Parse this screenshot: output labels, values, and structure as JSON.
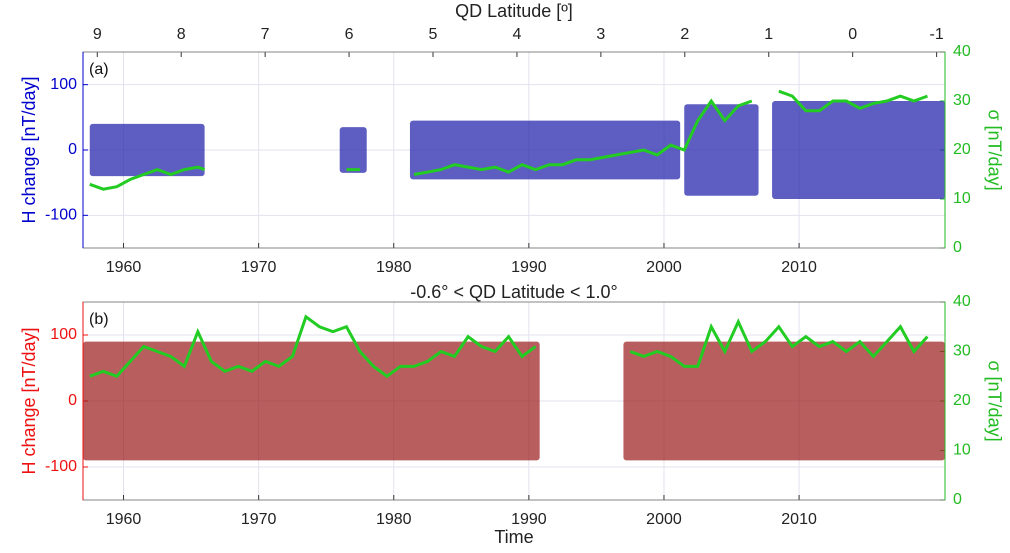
{
  "chart_data": [
    {
      "type": "scatter",
      "panel_label": "(a)",
      "x2label": "QD Latitude [º]",
      "ylabel": "H change [nT/day]",
      "y2label": "σ [nT/day]",
      "xlim": [
        1957,
        2020.8
      ],
      "xticks": [
        1960,
        1970,
        1980,
        1990,
        2000,
        2010
      ],
      "x2lim": [
        9.17,
        -1.1
      ],
      "x2ticks": [
        9,
        8,
        7,
        6,
        5,
        4,
        3,
        2,
        1,
        0,
        -1
      ],
      "ylim": [
        -150,
        150
      ],
      "yticks": [
        -100,
        0,
        100
      ],
      "y2lim": [
        0,
        40
      ],
      "y2ticks": [
        0,
        10,
        20,
        30,
        40
      ],
      "grid": true,
      "axis_color": "#0000cc",
      "y2_color": "#22bb22",
      "point_color": "#1a1aa8",
      "point_extents": [
        [
          1957.5,
          1966,
          -40,
          40
        ],
        [
          1976,
          1978,
          -35,
          35
        ],
        [
          1981.2,
          2001.2,
          -45,
          45
        ],
        [
          2001.5,
          2007,
          -70,
          70
        ],
        [
          2008,
          2020.8,
          -75,
          75
        ]
      ],
      "sigma": {
        "color": "#22cc22",
        "axis": "y2",
        "x": [
          1957.5,
          1958.5,
          1959.5,
          1960.5,
          1961.5,
          1962.5,
          1963.5,
          1964.5,
          1965.5,
          1966,
          1970,
          1976.5,
          1977.5,
          1979,
          1981.5,
          1982.5,
          1983.5,
          1984.5,
          1985.5,
          1986.5,
          1987.5,
          1988.5,
          1989.5,
          1990.5,
          1991.5,
          1992.5,
          1993.5,
          1994.5,
          1995.5,
          1996.5,
          1997.5,
          1998.5,
          1999.5,
          2000.5,
          2001.5,
          2002.5,
          2003.5,
          2004.5,
          2005.5,
          2006.5,
          2007.5,
          2008.5,
          2009.5,
          2010.5,
          2011.5,
          2012.5,
          2013.5,
          2014.5,
          2015.5,
          2016.5,
          2017.5,
          2018.5,
          2019.5
        ],
        "values": [
          13,
          12,
          12.5,
          14,
          15,
          16,
          15,
          16,
          16.5,
          16,
          null,
          16,
          16,
          null,
          15,
          15.5,
          16,
          17,
          16.5,
          16,
          16.5,
          15.5,
          17,
          16,
          17,
          17,
          18,
          18,
          18.5,
          19,
          19.5,
          20,
          19,
          21,
          20,
          26,
          30,
          26,
          29,
          30,
          null,
          32,
          31,
          28,
          28,
          30,
          30,
          28.5,
          29.5,
          30,
          31,
          30,
          31
        ]
      }
    },
    {
      "type": "scatter",
      "panel_label": "(b)",
      "title": "-0.6° < QD Latitude < 1.0°",
      "xlabel": "Time",
      "ylabel": "H change [nT/day]",
      "y2label": "σ [nT/day]",
      "xlim": [
        1957,
        2020.8
      ],
      "xticks": [
        1960,
        1970,
        1980,
        1990,
        2000,
        2010
      ],
      "ylim": [
        -150,
        150
      ],
      "yticks": [
        -100,
        0,
        100
      ],
      "y2lim": [
        0,
        40
      ],
      "y2ticks": [
        0,
        10,
        20,
        30,
        40
      ],
      "grid": true,
      "axis_color": "#ee1111",
      "y2_color": "#22bb22",
      "point_color": "#9a1a1a",
      "point_extents": [
        [
          1957,
          1990.8,
          -90,
          90
        ],
        [
          1997,
          2020.8,
          -90,
          90
        ]
      ],
      "sigma": {
        "color": "#22cc22",
        "axis": "y2",
        "x": [
          1957.5,
          1958.5,
          1959.5,
          1960.5,
          1961.5,
          1962.5,
          1963.5,
          1964.5,
          1965.5,
          1966.5,
          1967.5,
          1968.5,
          1969.5,
          1970.5,
          1971.5,
          1972.5,
          1973.5,
          1974.5,
          1975.5,
          1976.5,
          1977.5,
          1978.5,
          1979.5,
          1980.5,
          1981.5,
          1982.5,
          1983.5,
          1984.5,
          1985.5,
          1986.5,
          1987.5,
          1988.5,
          1989.5,
          1990.5,
          1994,
          1997.5,
          1998.5,
          1999.5,
          2000.5,
          2001.5,
          2002.5,
          2003.5,
          2004.5,
          2005.5,
          2006.5,
          2007.5,
          2008.5,
          2009.5,
          2010.5,
          2011.5,
          2012.5,
          2013.5,
          2014.5,
          2015.5,
          2016.5,
          2017.5,
          2018.5,
          2019.5
        ],
        "values": [
          25,
          26,
          25,
          28,
          31,
          30,
          29,
          27,
          34,
          28,
          26,
          27,
          26,
          28,
          27,
          29,
          37,
          35,
          34,
          35,
          30,
          27,
          25,
          27,
          27,
          28,
          30,
          29,
          33,
          31,
          30,
          33,
          29,
          31,
          null,
          30,
          29,
          30,
          29,
          27,
          27,
          35,
          30,
          36,
          30,
          32,
          35,
          31,
          33,
          31,
          32,
          30,
          32,
          29,
          32,
          35,
          30,
          33
        ]
      }
    }
  ]
}
